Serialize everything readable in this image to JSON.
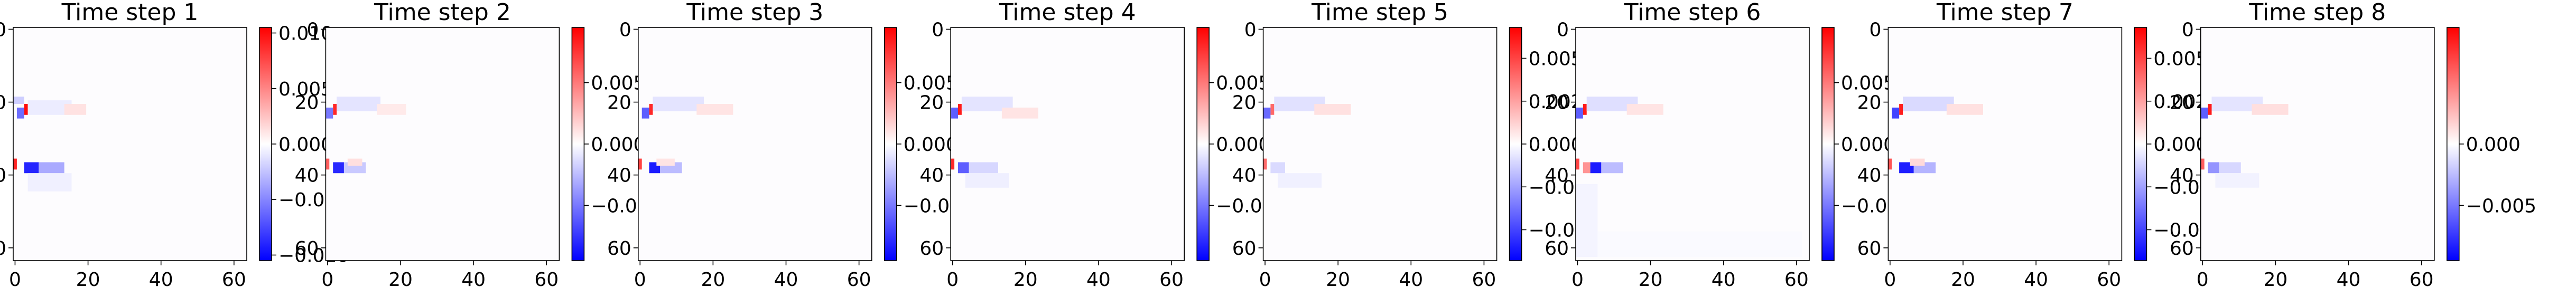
{
  "chart_data": [
    {
      "type": "heatmap",
      "title": "Time step 1",
      "x_ticks": [
        0,
        20,
        40,
        60
      ],
      "y_ticks": [
        0,
        20,
        40,
        60
      ],
      "xlim": [
        -0.5,
        63.5
      ],
      "ylim": [
        63.5,
        -0.5
      ],
      "colormap": "bwr",
      "clim": [
        -0.0105,
        0.0105
      ],
      "colorbar_ticks": [
        {
          "value": 0.01,
          "label": "0.010"
        },
        {
          "value": 0.005,
          "label": "0.005"
        },
        {
          "value": 0.0,
          "label": "0.000"
        },
        {
          "value": -0.005,
          "label": "−0.005"
        },
        {
          "value": -0.01,
          "label": "−0.010"
        }
      ],
      "features": [
        {
          "x": 3,
          "y": 21,
          "w": 1,
          "h": 3,
          "value": 0.01
        },
        {
          "x": 1,
          "y": 22,
          "w": 2,
          "h": 3,
          "value": -0.006
        },
        {
          "x": 0,
          "y": 19,
          "w": 3,
          "h": 2,
          "value": -0.002
        },
        {
          "x": 4,
          "y": 20,
          "w": 12,
          "h": 4,
          "value": -0.0008
        },
        {
          "x": 14,
          "y": 21,
          "w": 6,
          "h": 3,
          "value": 0.0012
        },
        {
          "x": 0,
          "y": 36,
          "w": 1,
          "h": 3,
          "value": 0.009
        },
        {
          "x": 3,
          "y": 37,
          "w": 4,
          "h": 3,
          "value": -0.009
        },
        {
          "x": 7,
          "y": 37,
          "w": 7,
          "h": 3,
          "value": -0.0035
        },
        {
          "x": 4,
          "y": 40,
          "w": 12,
          "h": 5,
          "value": -0.0006
        }
      ]
    },
    {
      "type": "heatmap",
      "title": "Time step 2",
      "x_ticks": [
        0,
        20,
        40,
        60
      ],
      "y_ticks": [
        0,
        20,
        40,
        60
      ],
      "xlim": [
        -0.5,
        63.5
      ],
      "ylim": [
        63.5,
        -0.5
      ],
      "colormap": "bwr",
      "clim": [
        -0.0095,
        0.0095
      ],
      "colorbar_ticks": [
        {
          "value": 0.005,
          "label": "0.005"
        },
        {
          "value": 0.0,
          "label": "0.000"
        },
        {
          "value": -0.005,
          "label": "−0.005"
        }
      ],
      "features": [
        {
          "x": 2,
          "y": 21,
          "w": 1,
          "h": 3,
          "value": 0.008
        },
        {
          "x": 0,
          "y": 22,
          "w": 2,
          "h": 3,
          "value": -0.005
        },
        {
          "x": 3,
          "y": 19,
          "w": 12,
          "h": 4,
          "value": -0.001
        },
        {
          "x": 14,
          "y": 21,
          "w": 8,
          "h": 3,
          "value": 0.0008
        },
        {
          "x": 0,
          "y": 36,
          "w": 1,
          "h": 3,
          "value": 0.006
        },
        {
          "x": 2,
          "y": 37,
          "w": 3,
          "h": 3,
          "value": -0.008
        },
        {
          "x": 5,
          "y": 37,
          "w": 6,
          "h": 3,
          "value": -0.002
        },
        {
          "x": 6,
          "y": 36,
          "w": 4,
          "h": 2,
          "value": 0.0012
        }
      ]
    },
    {
      "type": "heatmap",
      "title": "Time step 3",
      "x_ticks": [
        0,
        20,
        40,
        60
      ],
      "y_ticks": [
        0,
        20,
        40,
        60
      ],
      "xlim": [
        -0.5,
        63.5
      ],
      "ylim": [
        63.5,
        -0.5
      ],
      "colormap": "bwr",
      "clim": [
        -0.0095,
        0.0095
      ],
      "colorbar_ticks": [
        {
          "value": 0.005,
          "label": "0.005"
        },
        {
          "value": 0.0,
          "label": "0.000"
        },
        {
          "value": -0.005,
          "label": "−0.005"
        }
      ],
      "features": [
        {
          "x": 3,
          "y": 21,
          "w": 1,
          "h": 3,
          "value": 0.008
        },
        {
          "x": 1,
          "y": 22,
          "w": 2,
          "h": 3,
          "value": -0.006
        },
        {
          "x": 4,
          "y": 19,
          "w": 14,
          "h": 4,
          "value": -0.001
        },
        {
          "x": 16,
          "y": 21,
          "w": 10,
          "h": 3,
          "value": 0.001
        },
        {
          "x": 0,
          "y": 36,
          "w": 1,
          "h": 3,
          "value": 0.007
        },
        {
          "x": 3,
          "y": 37,
          "w": 3,
          "h": 3,
          "value": -0.0085
        },
        {
          "x": 6,
          "y": 37,
          "w": 6,
          "h": 3,
          "value": -0.0025
        },
        {
          "x": 5,
          "y": 36,
          "w": 5,
          "h": 2,
          "value": 0.001
        }
      ]
    },
    {
      "type": "heatmap",
      "title": "Time step 4",
      "x_ticks": [
        0,
        20,
        40,
        60
      ],
      "y_ticks": [
        0,
        20,
        40,
        60
      ],
      "xlim": [
        -0.5,
        63.5
      ],
      "ylim": [
        63.5,
        -0.5
      ],
      "colormap": "bwr",
      "clim": [
        -0.0095,
        0.0095
      ],
      "colorbar_ticks": [
        {
          "value": 0.005,
          "label": "0.005"
        },
        {
          "value": 0.0,
          "label": "0.000"
        },
        {
          "value": -0.005,
          "label": "−0.005"
        }
      ],
      "features": [
        {
          "x": 2,
          "y": 21,
          "w": 1,
          "h": 3,
          "value": 0.0085
        },
        {
          "x": 0,
          "y": 22,
          "w": 2,
          "h": 3,
          "value": -0.006
        },
        {
          "x": 3,
          "y": 19,
          "w": 14,
          "h": 4,
          "value": -0.001
        },
        {
          "x": 14,
          "y": 22,
          "w": 10,
          "h": 3,
          "value": 0.001
        },
        {
          "x": 0,
          "y": 36,
          "w": 1,
          "h": 3,
          "value": 0.008
        },
        {
          "x": 2,
          "y": 37,
          "w": 3,
          "h": 3,
          "value": -0.006
        },
        {
          "x": 5,
          "y": 37,
          "w": 8,
          "h": 3,
          "value": -0.0015
        },
        {
          "x": 4,
          "y": 40,
          "w": 12,
          "h": 4,
          "value": -0.0006
        }
      ]
    },
    {
      "type": "heatmap",
      "title": "Time step 5",
      "x_ticks": [
        0,
        20,
        40,
        60
      ],
      "y_ticks": [
        0,
        20,
        40,
        60
      ],
      "xlim": [
        -0.5,
        63.5
      ],
      "ylim": [
        63.5,
        -0.5
      ],
      "colormap": "bwr",
      "clim": [
        -0.0068,
        0.0068
      ],
      "colorbar_ticks": [
        {
          "value": 0.005,
          "label": "0.0050"
        },
        {
          "value": 0.0025,
          "label": "0.0025"
        },
        {
          "value": 0.0,
          "label": "0.0000"
        },
        {
          "value": -0.0025,
          "label": "−0.0025"
        },
        {
          "value": -0.005,
          "label": "−0.0050"
        }
      ],
      "features": [
        {
          "x": 2,
          "y": 21,
          "w": 1,
          "h": 3,
          "value": 0.004
        },
        {
          "x": 0,
          "y": 22,
          "w": 2,
          "h": 3,
          "value": -0.004
        },
        {
          "x": 3,
          "y": 19,
          "w": 14,
          "h": 4,
          "value": -0.0008
        },
        {
          "x": 14,
          "y": 21,
          "w": 10,
          "h": 3,
          "value": 0.0008
        },
        {
          "x": 0,
          "y": 36,
          "w": 1,
          "h": 3,
          "value": 0.004
        },
        {
          "x": 2,
          "y": 37,
          "w": 4,
          "h": 3,
          "value": -0.001
        },
        {
          "x": 4,
          "y": 40,
          "w": 12,
          "h": 4,
          "value": -0.0004
        }
      ]
    },
    {
      "type": "heatmap",
      "title": "Time step 6",
      "x_ticks": [
        0,
        20,
        40,
        60
      ],
      "y_ticks": [
        0,
        20,
        40,
        60
      ],
      "xlim": [
        -0.5,
        63.5
      ],
      "ylim": [
        63.5,
        -0.5
      ],
      "colormap": "bwr",
      "clim": [
        -0.0095,
        0.0095
      ],
      "colorbar_ticks": [
        {
          "value": 0.005,
          "label": "0.005"
        },
        {
          "value": 0.0,
          "label": "0.000"
        },
        {
          "value": -0.005,
          "label": "−0.005"
        }
      ],
      "features": [
        {
          "x": 2,
          "y": 21,
          "w": 1,
          "h": 3,
          "value": 0.0085
        },
        {
          "x": 0,
          "y": 22,
          "w": 2,
          "h": 3,
          "value": -0.006
        },
        {
          "x": 3,
          "y": 19,
          "w": 14,
          "h": 4,
          "value": -0.0012
        },
        {
          "x": 14,
          "y": 21,
          "w": 10,
          "h": 3,
          "value": 0.001
        },
        {
          "x": 0,
          "y": 36,
          "w": 1,
          "h": 3,
          "value": 0.007
        },
        {
          "x": 2,
          "y": 37,
          "w": 2,
          "h": 3,
          "value": 0.004
        },
        {
          "x": 4,
          "y": 37,
          "w": 3,
          "h": 3,
          "value": -0.0085
        },
        {
          "x": 7,
          "y": 37,
          "w": 6,
          "h": 3,
          "value": -0.0025
        },
        {
          "x": 0,
          "y": 43,
          "w": 6,
          "h": 20,
          "value": -0.0004
        },
        {
          "x": 6,
          "y": 56,
          "w": 56,
          "h": 7,
          "value": -0.0002
        }
      ]
    },
    {
      "type": "heatmap",
      "title": "Time step 7",
      "x_ticks": [
        0,
        20,
        40,
        60
      ],
      "y_ticks": [
        0,
        20,
        40,
        60
      ],
      "xlim": [
        -0.5,
        63.5
      ],
      "ylim": [
        63.5,
        -0.5
      ],
      "colormap": "bwr",
      "clim": [
        -0.0068,
        0.0068
      ],
      "colorbar_ticks": [
        {
          "value": 0.005,
          "label": "0.0050"
        },
        {
          "value": 0.0025,
          "label": "0.0025"
        },
        {
          "value": 0.0,
          "label": "0.0000"
        },
        {
          "value": -0.0025,
          "label": "−0.0025"
        },
        {
          "value": -0.005,
          "label": "−0.0050"
        }
      ],
      "features": [
        {
          "x": 3,
          "y": 21,
          "w": 1,
          "h": 3,
          "value": 0.006
        },
        {
          "x": 1,
          "y": 22,
          "w": 2,
          "h": 3,
          "value": -0.005
        },
        {
          "x": 4,
          "y": 19,
          "w": 14,
          "h": 4,
          "value": -0.001
        },
        {
          "x": 16,
          "y": 21,
          "w": 10,
          "h": 3,
          "value": 0.0008
        },
        {
          "x": 0,
          "y": 36,
          "w": 1,
          "h": 3,
          "value": 0.0045
        },
        {
          "x": 3,
          "y": 37,
          "w": 4,
          "h": 3,
          "value": -0.006
        },
        {
          "x": 7,
          "y": 37,
          "w": 6,
          "h": 3,
          "value": -0.002
        },
        {
          "x": 6,
          "y": 36,
          "w": 4,
          "h": 2,
          "value": 0.001
        }
      ]
    },
    {
      "type": "heatmap",
      "title": "Time step 8",
      "x_ticks": [
        0,
        20,
        40,
        60
      ],
      "y_ticks": [
        0,
        20,
        40,
        60
      ],
      "xlim": [
        -0.5,
        63.5
      ],
      "ylim": [
        63.5,
        -0.5
      ],
      "colormap": "bwr",
      "clim": [
        -0.0095,
        0.0095
      ],
      "colorbar_ticks": [
        {
          "value": 0.0,
          "label": "0.000"
        },
        {
          "value": -0.005,
          "label": "−0.005"
        }
      ],
      "features": [
        {
          "x": 2,
          "y": 21,
          "w": 1,
          "h": 3,
          "value": 0.0085
        },
        {
          "x": 0,
          "y": 22,
          "w": 2,
          "h": 3,
          "value": -0.006
        },
        {
          "x": 3,
          "y": 19,
          "w": 14,
          "h": 4,
          "value": -0.001
        },
        {
          "x": 14,
          "y": 21,
          "w": 10,
          "h": 3,
          "value": 0.0012
        },
        {
          "x": 0,
          "y": 36,
          "w": 1,
          "h": 3,
          "value": 0.006
        },
        {
          "x": 2,
          "y": 37,
          "w": 3,
          "h": 3,
          "value": -0.004
        },
        {
          "x": 5,
          "y": 37,
          "w": 6,
          "h": 3,
          "value": -0.0015
        },
        {
          "x": 4,
          "y": 40,
          "w": 12,
          "h": 4,
          "value": -0.0005
        }
      ]
    }
  ]
}
